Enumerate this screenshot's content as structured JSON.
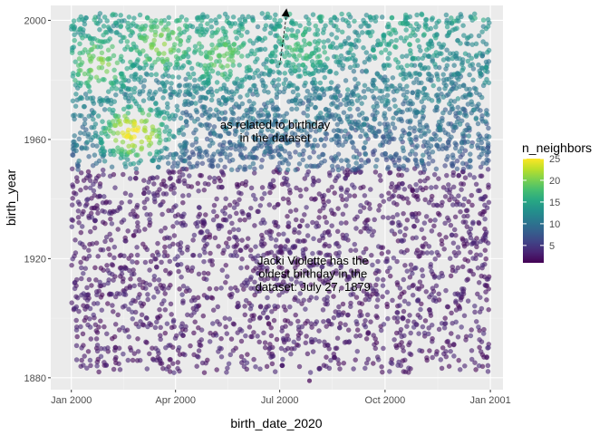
{
  "chart_data": {
    "type": "scatter",
    "title": "",
    "xlabel": "birth_date_2020",
    "ylabel": "birth_year",
    "x_type": "date",
    "xlim": [
      "1999-12-14",
      "2001-01-12"
    ],
    "ylim": [
      1876,
      2005
    ],
    "x_ticks": [
      {
        "value": "2000-01-01",
        "label": "Jan 2000"
      },
      {
        "value": "2000-04-01",
        "label": "Apr 2000"
      },
      {
        "value": "2000-07-01",
        "label": "Jul 2000"
      },
      {
        "value": "2000-10-01",
        "label": "Oct 2000"
      },
      {
        "value": "2001-01-01",
        "label": "Jan 2001"
      }
    ],
    "y_ticks": [
      1880,
      1920,
      1960,
      2000
    ],
    "grid": true,
    "color_scale": {
      "name": "n_neighbors",
      "palette": "viridis",
      "range": [
        1,
        25
      ],
      "breaks": [
        5,
        10,
        15,
        20,
        25
      ],
      "colors": [
        "#440154",
        "#482878",
        "#3e4a89",
        "#31688e",
        "#26828e",
        "#1f9e89",
        "#35b779",
        "#6ece58",
        "#b5de2b",
        "#fde725"
      ]
    },
    "point_alpha": 0.6,
    "series": [
      {
        "point_groups": [
          {
            "x_range": [
              "2000-01-01",
              "2000-12-31"
            ],
            "y_range": [
              1950,
              2002
            ],
            "n_neighbors_range": [
              1,
              25
            ],
            "approx_count": 2600
          },
          {
            "x_range": [
              "2000-01-01",
              "2000-12-31"
            ],
            "y_range": [
              1882,
              1950
            ],
            "n_neighbors_range": [
              1,
              4
            ],
            "approx_count": 1900
          }
        ],
        "dense_hotspots": [
          {
            "x": "2000-01-25",
            "y": 1985,
            "n_neighbors": 20
          },
          {
            "x": "2000-02-25",
            "y": 1962,
            "n_neighbors": 25
          },
          {
            "x": "2000-03-20",
            "y": 1992,
            "n_neighbors": 20
          },
          {
            "x": "2000-05-10",
            "y": 1988,
            "n_neighbors": 19
          },
          {
            "x": "2000-07-20",
            "y": 1990,
            "n_neighbors": 17
          },
          {
            "x": "2000-10-15",
            "y": 1994,
            "n_neighbors": 15
          }
        ],
        "highlighted_points": [
          {
            "x": "2000-07-27",
            "y": 1879
          }
        ]
      }
    ],
    "annotations": [
      {
        "text_lines": [
          "Jacki Violette has the",
          "oldest birthday in the",
          "dataset: July 27, 1879"
        ],
        "x": "2000-07-30",
        "y": 1918
      },
      {
        "text_lines": [
          "",
          "as related to birthday",
          "in the dataset"
        ],
        "x": "2000-06-27",
        "y": 1968
      },
      {
        "arrow_from": {
          "x": "2000-07-01",
          "y": 1985
        },
        "arrow_to": {
          "x": "2000-07-07",
          "y": 2004
        }
      }
    ]
  }
}
